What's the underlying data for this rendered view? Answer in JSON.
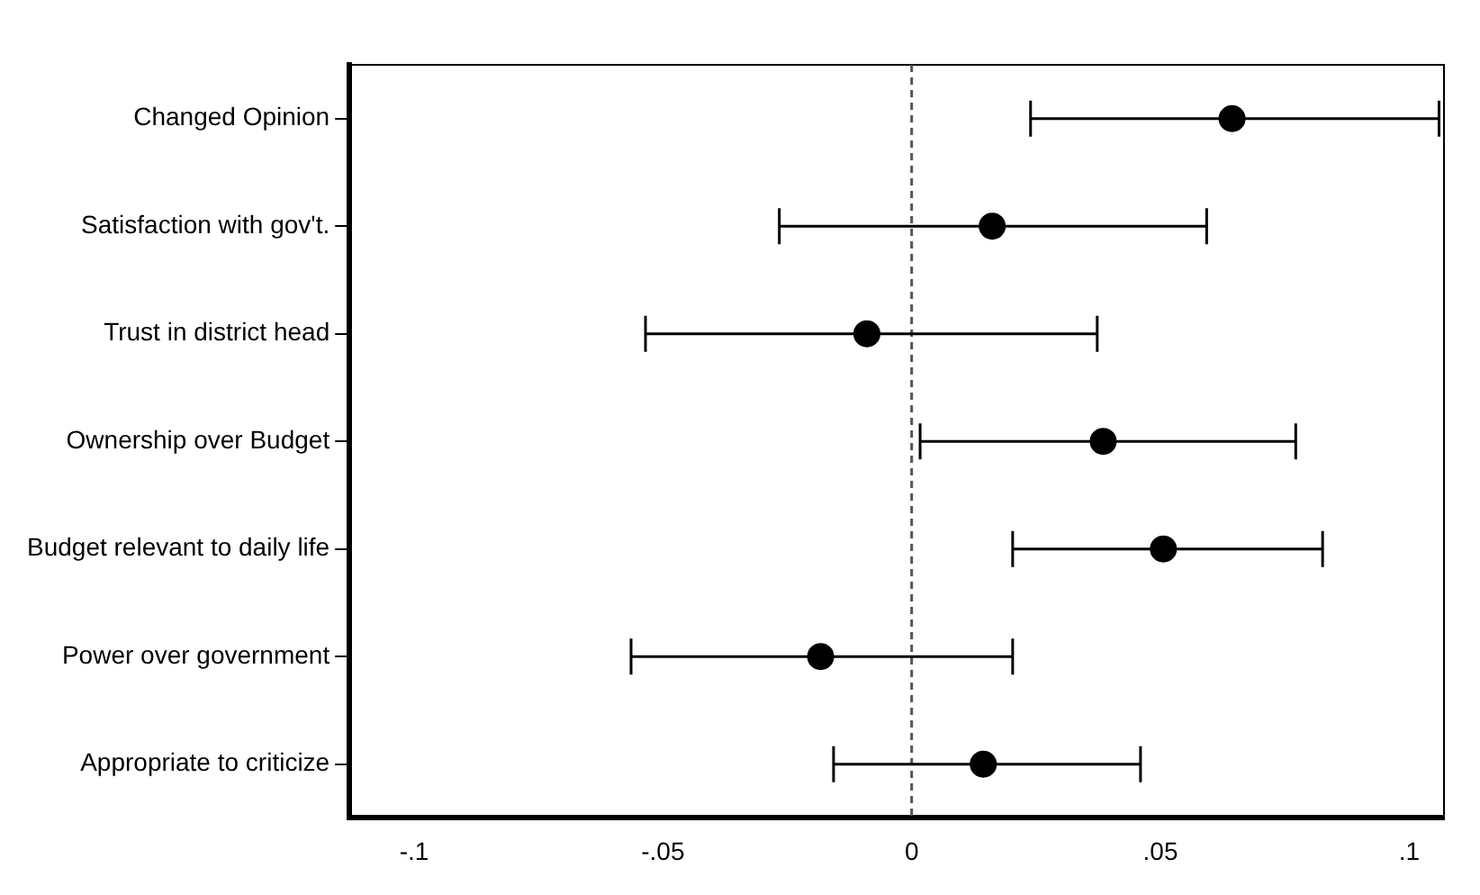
{
  "chart_data": {
    "type": "scatter",
    "orientation": "horizontal",
    "categories": [
      "Changed Opinion",
      "Satisfaction with gov't.",
      "Trust in district head",
      "Ownership over Budget",
      "Budget relevant to daily life",
      "Power over government",
      "Appropriate to criticize"
    ],
    "values": [
      0.0644,
      0.0162,
      -0.009,
      0.0385,
      0.0506,
      -0.0183,
      0.0144
    ],
    "errors": [
      [
        0.0239,
        0.106
      ],
      [
        -0.0266,
        0.0593
      ],
      [
        -0.0535,
        0.0373
      ],
      [
        0.0017,
        0.0772
      ],
      [
        0.0203,
        0.0826
      ],
      [
        -0.0564,
        0.0203
      ],
      [
        -0.0157,
        0.046
      ]
    ],
    "color": "#000000",
    "marker": "circle",
    "xlim": [
      -0.113,
      0.107
    ],
    "xticks": [
      {
        "value": -0.1,
        "label": "-.1"
      },
      {
        "value": -0.05,
        "label": "-.05"
      },
      0,
      {
        "value": 0.05,
        "label": ".05"
      },
      {
        "value": 0.1,
        "label": ".1"
      }
    ],
    "ref_lines": [
      {
        "axis": "x",
        "value": 0,
        "color": "#555555",
        "line_style": "dashed"
      }
    ],
    "grid": false,
    "legend": false
  }
}
